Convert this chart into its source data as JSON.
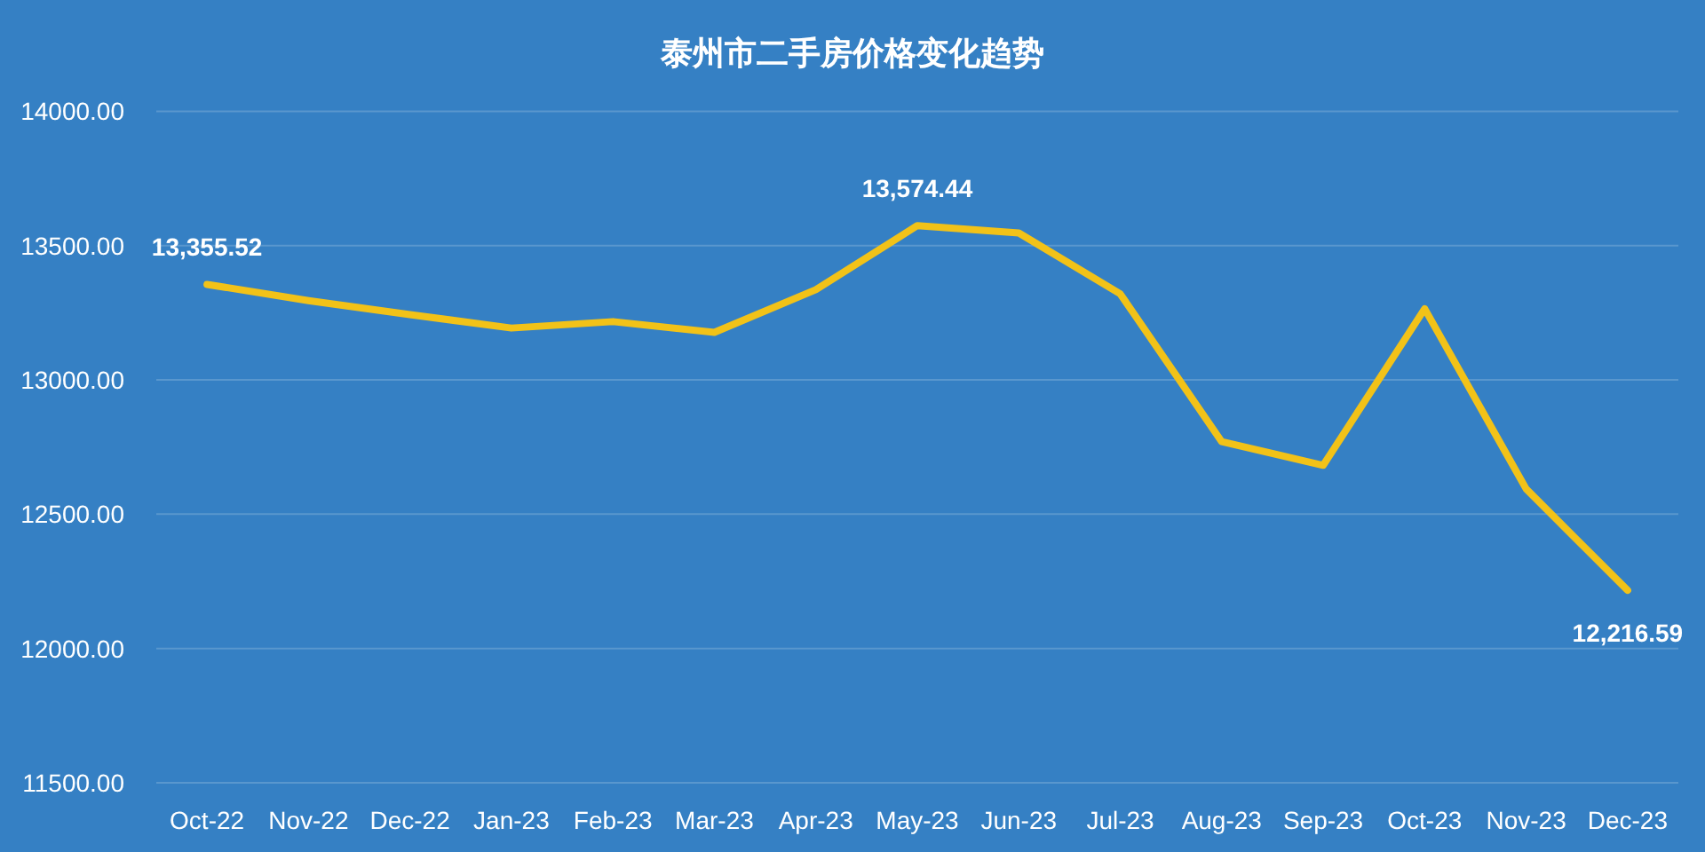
{
  "chart_data": {
    "type": "line",
    "title": "泰州市二手房价格变化趋势",
    "categories": [
      "Oct-22",
      "Nov-22",
      "Dec-22",
      "Jan-23",
      "Feb-23",
      "Mar-23",
      "Apr-23",
      "May-23",
      "Jun-23",
      "Jul-23",
      "Aug-23",
      "Sep-23",
      "Oct-23",
      "Nov-23",
      "Dec-23"
    ],
    "series": [
      {
        "color": "#f2c218",
        "values": [
          13355.52,
          13295,
          13243,
          13193,
          13217,
          13177,
          13336,
          13574.44,
          13547,
          13320,
          12770,
          12682,
          13265,
          12594,
          12216.59
        ],
        "value_labels": [
          "13,355.52",
          null,
          null,
          null,
          null,
          null,
          null,
          "13,574.44",
          null,
          null,
          null,
          null,
          null,
          null,
          "12,216.59"
        ]
      }
    ],
    "ylim": [
      11500,
      14000
    ],
    "yticks": [
      {
        "value": 11500,
        "label": "11500.00"
      },
      {
        "value": 12000,
        "label": "12000.00"
      },
      {
        "value": 12500,
        "label": "12500.00"
      },
      {
        "value": 13000,
        "label": "13000.00"
      },
      {
        "value": 13500,
        "label": "13500.00"
      },
      {
        "value": 14000,
        "label": "14000.00"
      }
    ],
    "grid": "y",
    "marker": "none",
    "line_style": "solid"
  }
}
